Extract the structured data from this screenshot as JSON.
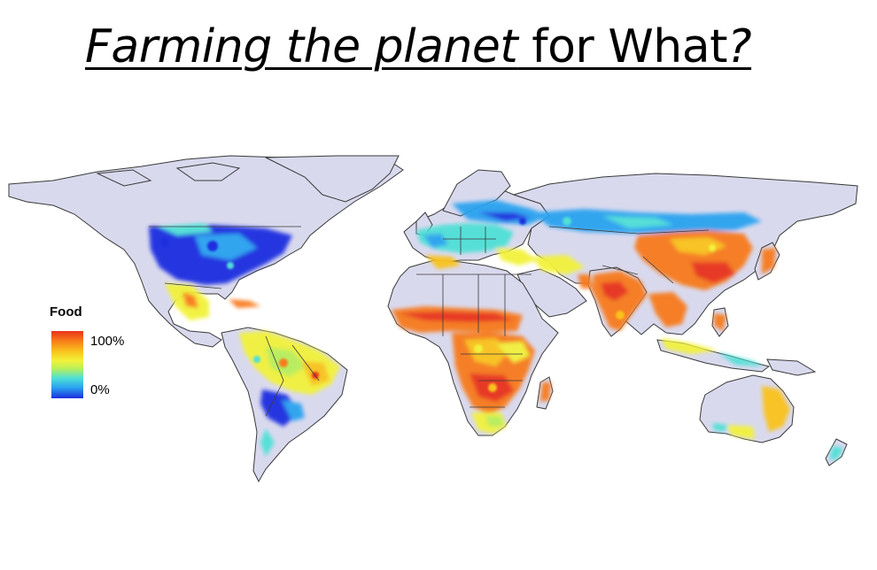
{
  "title": {
    "part1": "Farming the planet",
    "part2": " for What",
    "part3": "?"
  },
  "legend": {
    "title": "Food",
    "max_label": "100%",
    "min_label": "0%",
    "gradient": [
      "#1d2fe0",
      "#2aa3f0",
      "#4fe0d6",
      "#b8ef5a",
      "#f2f23a",
      "#f9c21c",
      "#f77a1a",
      "#e8331a"
    ]
  },
  "colors": {
    "land": "#d9d9ee",
    "border": "#3a3a3a",
    "ocean": "#ffffff"
  }
}
